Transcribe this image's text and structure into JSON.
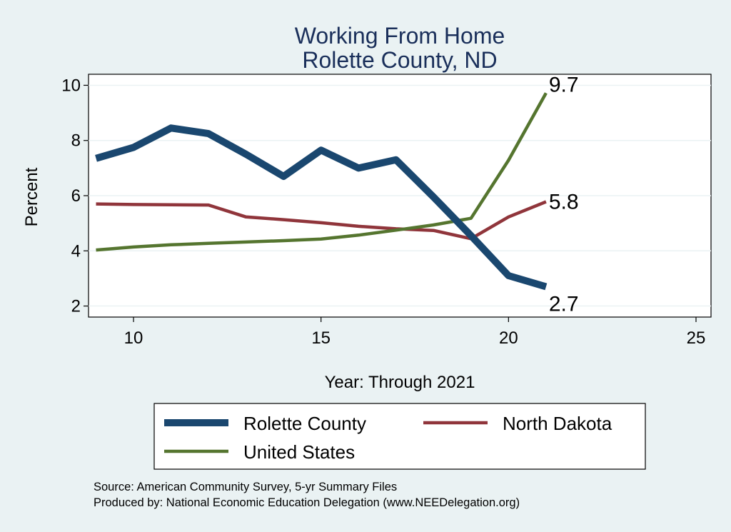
{
  "chart_data": {
    "type": "line",
    "title": "Working From Home",
    "subtitle": "Rolette County, ND",
    "xlabel": "Year: Through 2021",
    "ylabel": "Percent",
    "xlim": [
      8.8,
      25.4
    ],
    "ylim": [
      1.6,
      10.4
    ],
    "x_ticks": [
      10,
      15,
      20,
      25
    ],
    "y_ticks": [
      2,
      4,
      6,
      8,
      10
    ],
    "grid": true,
    "legend_position": "bottom",
    "series": [
      {
        "name": "Rolette County",
        "color": "#1a476f",
        "line_width": 10,
        "end_label": "2.7",
        "points": [
          [
            9,
            7.35
          ],
          [
            10,
            7.75
          ],
          [
            11,
            8.45
          ],
          [
            12,
            8.25
          ],
          [
            13,
            7.5
          ],
          [
            14,
            6.7
          ],
          [
            15,
            7.65
          ],
          [
            16,
            7.0
          ],
          [
            17,
            7.3
          ],
          [
            18,
            5.95
          ],
          [
            19,
            4.55
          ],
          [
            20,
            3.1
          ],
          [
            21,
            2.7
          ]
        ]
      },
      {
        "name": "North Dakota",
        "color": "#90353b",
        "line_width": 4.5,
        "end_label": "5.8",
        "points": [
          [
            9,
            5.7
          ],
          [
            10,
            5.68
          ],
          [
            11,
            5.67
          ],
          [
            12,
            5.66
          ],
          [
            13,
            5.23
          ],
          [
            14,
            5.13
          ],
          [
            15,
            5.02
          ],
          [
            16,
            4.89
          ],
          [
            17,
            4.8
          ],
          [
            18,
            4.74
          ],
          [
            19,
            4.44
          ],
          [
            20,
            5.23
          ],
          [
            21,
            5.78
          ]
        ]
      },
      {
        "name": "United States",
        "color": "#55752f",
        "line_width": 4.5,
        "end_label": "9.7",
        "points": [
          [
            9,
            4.03
          ],
          [
            10,
            4.14
          ],
          [
            11,
            4.22
          ],
          [
            12,
            4.27
          ],
          [
            13,
            4.32
          ],
          [
            14,
            4.37
          ],
          [
            15,
            4.43
          ],
          [
            16,
            4.57
          ],
          [
            17,
            4.75
          ],
          [
            18,
            4.94
          ],
          [
            19,
            5.18
          ],
          [
            20,
            7.28
          ],
          [
            21,
            9.72
          ]
        ]
      }
    ]
  },
  "notes": {
    "source": "Source: American Community Survey, 5-yr Summary Files",
    "produced": "Produced by: National Economic Education Delegation (www.NEEDelegation.org)"
  }
}
